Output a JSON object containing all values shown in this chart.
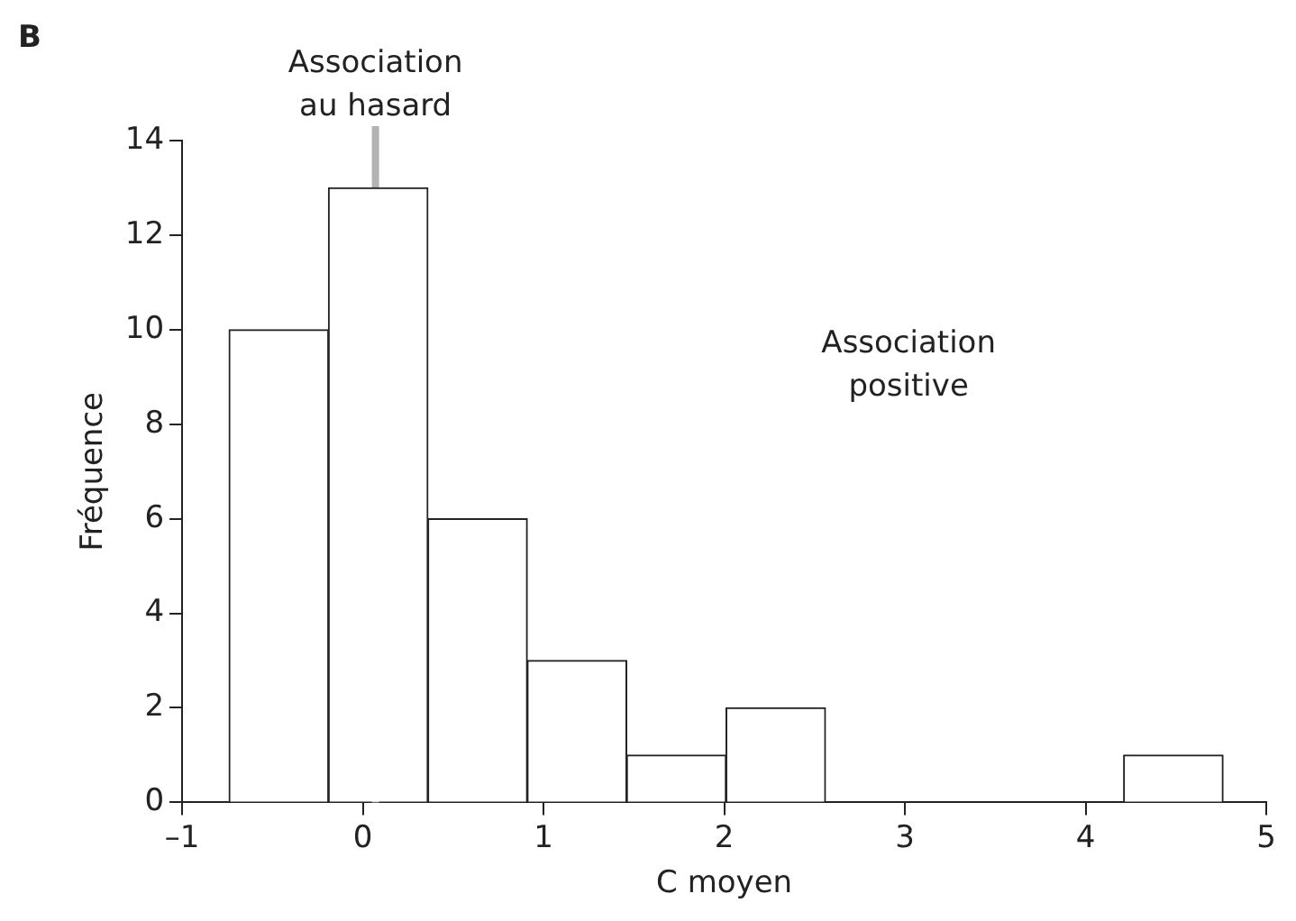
{
  "chart_data": {
    "type": "histogram",
    "title": "B",
    "xlabel": "C moyen",
    "ylabel": "Fréquence",
    "bins": [
      -0.74,
      -0.19,
      0.36,
      0.91,
      1.46,
      2.01,
      2.56,
      3.11,
      3.66,
      4.21,
      4.76
    ],
    "values": [
      10,
      13,
      6,
      3,
      1,
      2,
      0,
      0,
      0,
      1
    ],
    "color": "#ffffff",
    "xlim": [
      -1,
      5
    ],
    "xticks": [
      {
        "value": -1,
        "label": "–1"
      },
      0,
      1,
      2,
      3,
      4,
      5
    ],
    "ylim": [
      0,
      14
    ],
    "yticks": [
      0,
      2,
      4,
      6,
      8,
      10,
      12,
      14
    ],
    "grid": false,
    "ref_lines": [
      {
        "axis": "x",
        "value": 0.07,
        "label": "Association au hasard",
        "color": "#b3b3b3"
      }
    ],
    "annotations": [
      "Association positive"
    ]
  }
}
